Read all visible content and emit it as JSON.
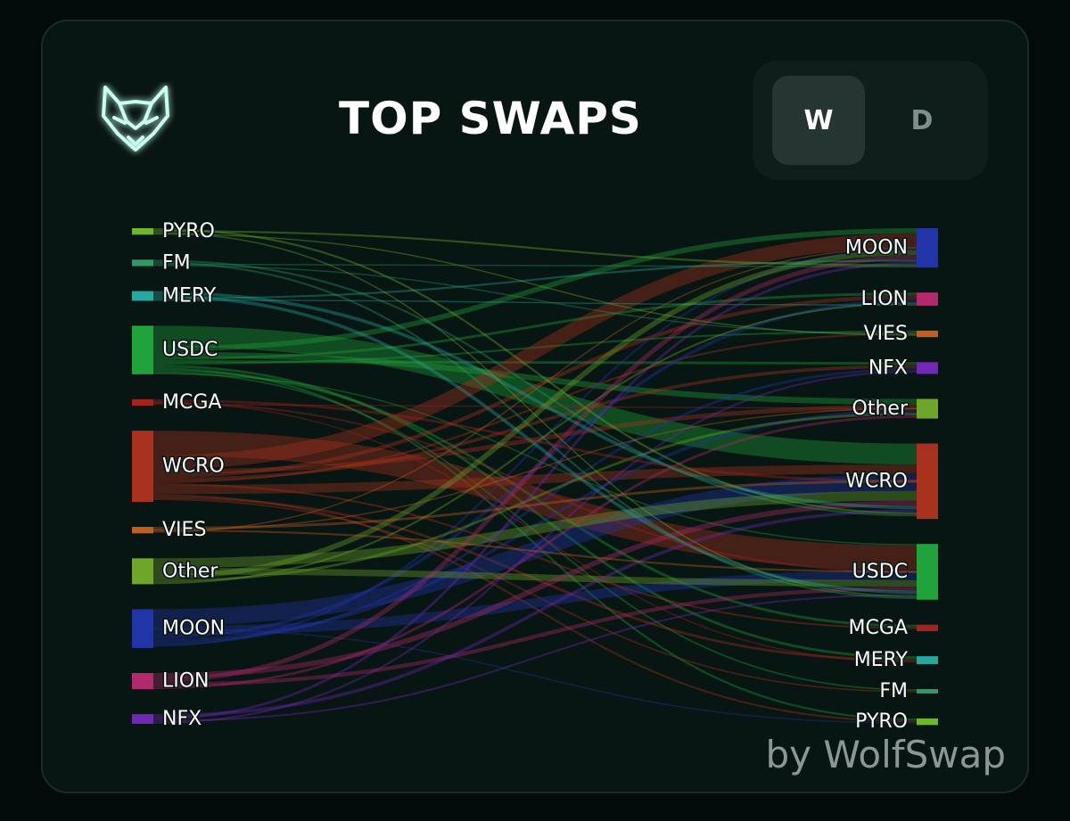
{
  "header": {
    "title": "TOP SWAPS",
    "logo_icon": "wolf-head-icon"
  },
  "timeframe_toggle": {
    "options": [
      {
        "label": "W",
        "active": true
      },
      {
        "label": "D",
        "active": false
      }
    ]
  },
  "footer": {
    "brand": "by WolfSwap"
  },
  "colors": {
    "PYRO": "#6fb62b",
    "FM": "#2b9a66",
    "MERY": "#27a7a1",
    "USDC": "#21a33b",
    "MCGA": "#a3231f",
    "WCRO": "#a8321e",
    "VIES": "#c0601f",
    "Other": "#6ea62a",
    "MOON": "#2135a8",
    "LION": "#b02a6c",
    "NFX": "#7128b4"
  },
  "chart_data": {
    "type": "sankey",
    "sources": [
      {
        "label": "PYRO",
        "value": 1
      },
      {
        "label": "FM",
        "value": 1
      },
      {
        "label": "MERY",
        "value": 1.5
      },
      {
        "label": "USDC",
        "value": 7.5
      },
      {
        "label": "MCGA",
        "value": 1
      },
      {
        "label": "WCRO",
        "value": 11
      },
      {
        "label": "VIES",
        "value": 1
      },
      {
        "label": "Other",
        "value": 4
      },
      {
        "label": "MOON",
        "value": 6
      },
      {
        "label": "LION",
        "value": 2.5
      },
      {
        "label": "NFX",
        "value": 1.5
      }
    ],
    "targets": [
      {
        "label": "MOON",
        "value": 6
      },
      {
        "label": "LION",
        "value": 2
      },
      {
        "label": "VIES",
        "value": 1
      },
      {
        "label": "NFX",
        "value": 1.8
      },
      {
        "label": "Other",
        "value": 3
      },
      {
        "label": "WCRO",
        "value": 11.5
      },
      {
        "label": "USDC",
        "value": 8.5
      },
      {
        "label": "MCGA",
        "value": 1
      },
      {
        "label": "MERY",
        "value": 1.2
      },
      {
        "label": "FM",
        "value": 0.5
      },
      {
        "label": "PYRO",
        "value": 1
      }
    ],
    "flows": [
      [
        "USDC",
        "WCRO",
        3.2
      ],
      [
        "USDC",
        "MOON",
        0.8
      ],
      [
        "USDC",
        "Other",
        0.9
      ],
      [
        "USDC",
        "LION",
        0.4
      ],
      [
        "USDC",
        "NFX",
        0.4
      ],
      [
        "USDC",
        "VIES",
        0.3
      ],
      [
        "USDC",
        "MERY",
        0.4
      ],
      [
        "USDC",
        "PYRO",
        0.3
      ],
      [
        "USDC",
        "MCGA",
        0.4
      ],
      [
        "USDC",
        "FM",
        0.2
      ],
      [
        "USDC",
        "USDC",
        0.2
      ],
      [
        "WCRO",
        "USDC",
        3.8
      ],
      [
        "WCRO",
        "MOON",
        2.2
      ],
      [
        "WCRO",
        "Other",
        0.7
      ],
      [
        "WCRO",
        "LION",
        0.6
      ],
      [
        "WCRO",
        "NFX",
        0.5
      ],
      [
        "WCRO",
        "VIES",
        0.3
      ],
      [
        "WCRO",
        "MCGA",
        0.3
      ],
      [
        "WCRO",
        "WCRO",
        1.4
      ],
      [
        "WCRO",
        "PYRO",
        0.3
      ],
      [
        "WCRO",
        "MERY",
        0.4
      ],
      [
        "WCRO",
        "FM",
        0.2
      ],
      [
        "MOON",
        "WCRO",
        2.6
      ],
      [
        "MOON",
        "USDC",
        1.5
      ],
      [
        "MOON",
        "LION",
        0.5
      ],
      [
        "MOON",
        "Other",
        0.5
      ],
      [
        "MOON",
        "NFX",
        0.4
      ],
      [
        "MOON",
        "MOON",
        0.3
      ],
      [
        "MOON",
        "PYRO",
        0.2
      ],
      [
        "Other",
        "WCRO",
        1.5
      ],
      [
        "Other",
        "USDC",
        1.0
      ],
      [
        "Other",
        "MOON",
        0.8
      ],
      [
        "Other",
        "Other",
        0.4
      ],
      [
        "Other",
        "LION",
        0.3
      ],
      [
        "LION",
        "WCRO",
        0.8
      ],
      [
        "LION",
        "MOON",
        0.7
      ],
      [
        "LION",
        "USDC",
        0.6
      ],
      [
        "LION",
        "Other",
        0.4
      ],
      [
        "MERY",
        "WCRO",
        0.5
      ],
      [
        "MERY",
        "USDC",
        0.5
      ],
      [
        "MERY",
        "MOON",
        0.3
      ],
      [
        "MERY",
        "LION",
        0.2
      ],
      [
        "NFX",
        "WCRO",
        0.5
      ],
      [
        "NFX",
        "MOON",
        0.4
      ],
      [
        "NFX",
        "USDC",
        0.3
      ],
      [
        "NFX",
        "NFX",
        0.3
      ],
      [
        "PYRO",
        "WCRO",
        0.3
      ],
      [
        "PYRO",
        "MOON",
        0.3
      ],
      [
        "PYRO",
        "USDC",
        0.2
      ],
      [
        "PYRO",
        "VIES",
        0.2
      ],
      [
        "FM",
        "WCRO",
        0.3
      ],
      [
        "FM",
        "USDC",
        0.3
      ],
      [
        "FM",
        "MOON",
        0.2
      ],
      [
        "FM",
        "VIES",
        0.2
      ],
      [
        "MCGA",
        "WCRO",
        0.4
      ],
      [
        "MCGA",
        "USDC",
        0.3
      ],
      [
        "MCGA",
        "Other",
        0.1
      ],
      [
        "MCGA",
        "MERY",
        0.2
      ],
      [
        "VIES",
        "WCRO",
        0.4
      ],
      [
        "VIES",
        "USDC",
        0.3
      ],
      [
        "VIES",
        "MOON",
        0.2
      ],
      [
        "VIES",
        "Other",
        0.1
      ]
    ]
  }
}
